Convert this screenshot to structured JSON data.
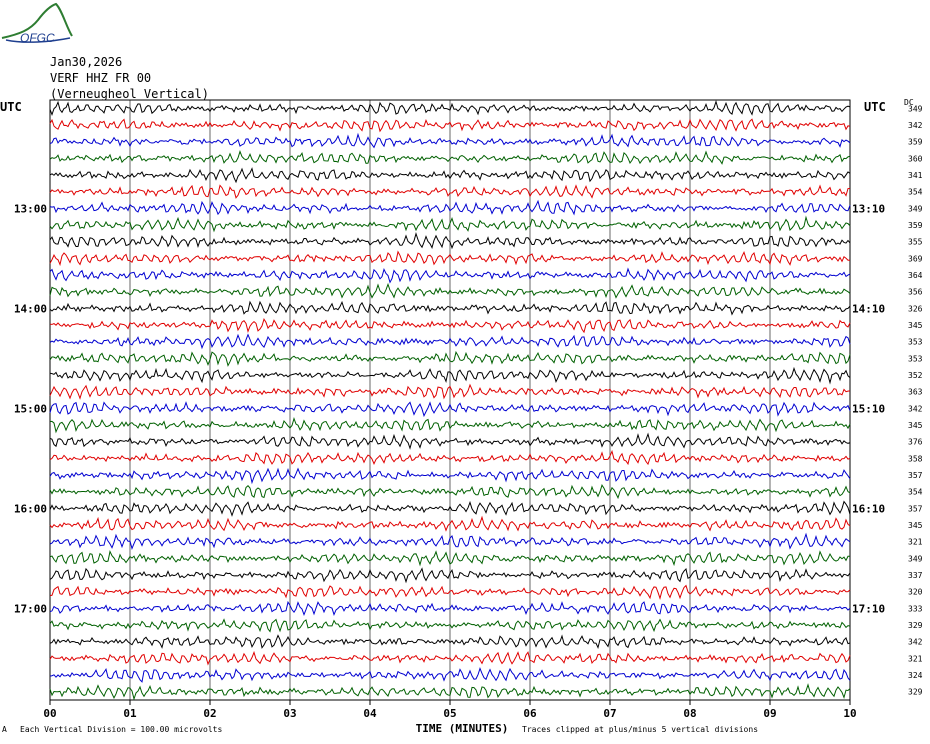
{
  "logo": {
    "text": "OFGC",
    "colors": [
      "#2e7d32",
      "#1f3f8f"
    ]
  },
  "header": {
    "date": "Jan30,2026",
    "station": "VERF HHZ FR 00",
    "location": "(Verneugheol Vertical)"
  },
  "left_axis_label": "UTC",
  "right_axis_label": "UTC",
  "dc_label": "DC",
  "footer": {
    "mark": "A",
    "scale": "Each Vertical Division =  100.00 microvolts",
    "clip": "Traces clipped at plus/minus 5 vertical divisions"
  },
  "trace_colors": [
    "#000000",
    "#e00000",
    "#0000d0",
    "#006000"
  ],
  "chart_data": {
    "type": "line",
    "xlabel": "TIME (MINUTES)",
    "x_ticks": [
      "00",
      "01",
      "02",
      "03",
      "04",
      "05",
      "06",
      "07",
      "08",
      "09",
      "10"
    ],
    "xlim": [
      0,
      10
    ],
    "left_time_labels": [
      {
        "row": 6,
        "label": "13:00"
      },
      {
        "row": 12,
        "label": "14:00"
      },
      {
        "row": 18,
        "label": "15:00"
      },
      {
        "row": 24,
        "label": "16:00"
      },
      {
        "row": 30,
        "label": "17:00"
      }
    ],
    "right_time_labels": [
      {
        "row": 6,
        "label": "13:10"
      },
      {
        "row": 12,
        "label": "14:10"
      },
      {
        "row": 18,
        "label": "15:10"
      },
      {
        "row": 24,
        "label": "16:10"
      },
      {
        "row": 30,
        "label": "17:10"
      }
    ],
    "dc_values": [
      349,
      342,
      359,
      360,
      341,
      354,
      349,
      359,
      355,
      369,
      364,
      356,
      326,
      345,
      353,
      353,
      352,
      363,
      342,
      345,
      376,
      358,
      357,
      354,
      357,
      345,
      321,
      349,
      337,
      320,
      333,
      329,
      342,
      321,
      324,
      329
    ]
  }
}
